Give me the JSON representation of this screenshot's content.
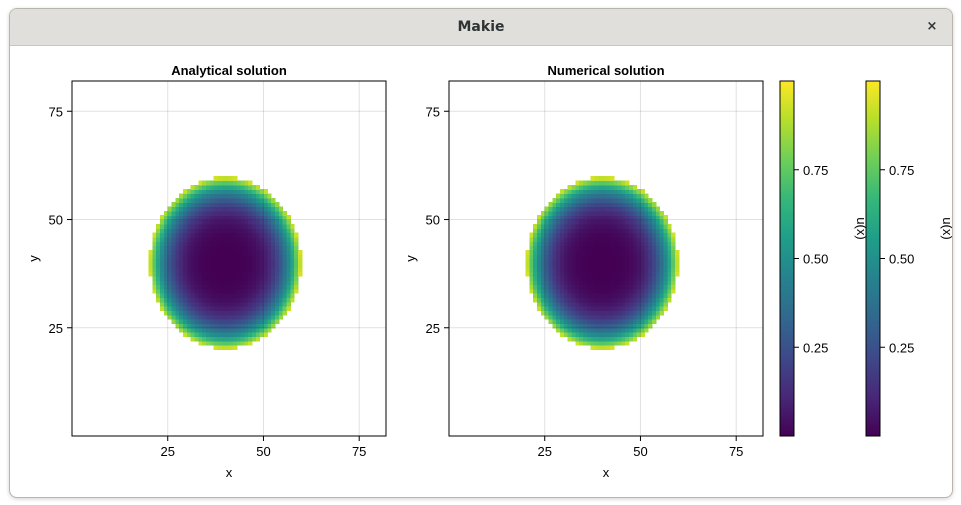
{
  "window": {
    "title": "Makie",
    "close_glyph": "×",
    "close_icon": "close-icon"
  },
  "colormap": {
    "name": "viridis",
    "stops": [
      "#440154",
      "#482878",
      "#3e4989",
      "#31688e",
      "#26828e",
      "#1f9e89",
      "#35b779",
      "#6ece58",
      "#b5de2b",
      "#fde725"
    ]
  },
  "chart_data": [
    {
      "type": "heatmap",
      "title": "Analytical solution",
      "xlabel": "x",
      "ylabel": "y",
      "xlim": [
        0,
        82
      ],
      "ylim": [
        0,
        82
      ],
      "xticks": [
        25,
        50,
        75
      ],
      "yticks": [
        25,
        50,
        75
      ],
      "grid": true,
      "grid_size": 80,
      "field": {
        "center": [
          40,
          40
        ],
        "radius_x": 20,
        "radius_y": 20,
        "mask_above": 0.99
      }
    },
    {
      "type": "heatmap",
      "title": "Numerical solution",
      "xlabel": "x",
      "ylabel": "y",
      "xlim": [
        0,
        82
      ],
      "ylim": [
        0,
        82
      ],
      "xticks": [
        25,
        50,
        75
      ],
      "yticks": [
        25,
        50,
        75
      ],
      "grid": true,
      "grid_size": 80,
      "field": {
        "center": [
          40,
          40
        ],
        "radius_x": 20,
        "radius_y": 20,
        "mask_above": 0.99
      }
    }
  ],
  "colorbars": [
    {
      "label": "u(x)",
      "range": [
        0,
        1
      ],
      "ticks": [
        0.25,
        0.5,
        0.75
      ],
      "tick_labels": [
        "0.25",
        "0.50",
        "0.75"
      ]
    },
    {
      "label": "u(x)",
      "range": [
        0,
        1
      ],
      "ticks": [
        0.25,
        0.5,
        0.75
      ],
      "tick_labels": [
        "0.25",
        "0.50",
        "0.75"
      ]
    }
  ]
}
